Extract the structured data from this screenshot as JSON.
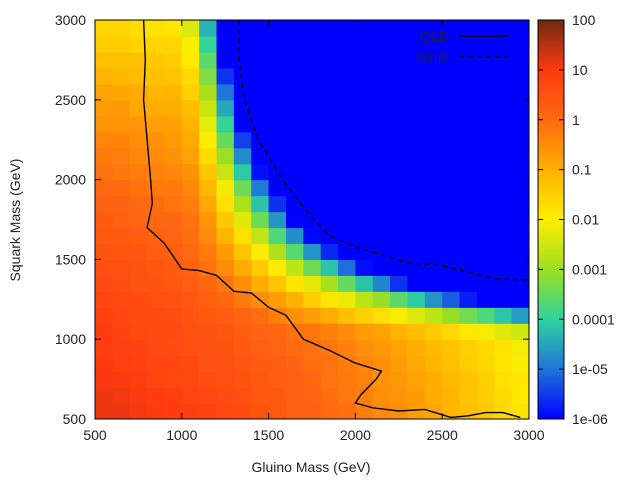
{
  "chart_data": {
    "type": "heatmap",
    "title": "",
    "xlabel": "Gluino Mass (GeV)",
    "ylabel": "Squark Mass (GeV)",
    "xlim": [
      500,
      3000
    ],
    "ylim": [
      500,
      3000
    ],
    "x_ticks": [
      500,
      1000,
      1500,
      2000,
      2500,
      3000
    ],
    "y_ticks": [
      500,
      1000,
      1500,
      2000,
      2500,
      3000
    ],
    "x_tick_labels": [
      "500",
      "1000",
      "1500",
      "2000",
      "2500",
      "3000"
    ],
    "y_tick_labels": [
      "500",
      "1000",
      "1500",
      "2000",
      "2500",
      "3000"
    ],
    "grid_step_gev": 100,
    "colorbar": {
      "scale": "log",
      "range": [
        1e-06,
        100
      ],
      "ticks": [
        100,
        10,
        1,
        0.1,
        0.01,
        0.001,
        0.0001,
        1e-05,
        1e-06
      ],
      "tick_labels": [
        "100",
        "10",
        "1",
        "0.1",
        "0.01",
        "0.001",
        "0.0001",
        "1e-05",
        "1e-06"
      ],
      "palette": [
        "#0000ff",
        "#1f74d9",
        "#2ed3a0",
        "#9fdf20",
        "#ffee00",
        "#ffb000",
        "#ff6a10",
        "#ff3a10",
        "#6e2a10"
      ]
    },
    "series": [
      {
        "name": "QLD",
        "style": "solid",
        "points": [
          [
            780,
            3000
          ],
          [
            790,
            2750
          ],
          [
            780,
            2500
          ],
          [
            800,
            2250
          ],
          [
            820,
            2000
          ],
          [
            830,
            1850
          ],
          [
            800,
            1700
          ],
          [
            900,
            1600
          ],
          [
            1000,
            1440
          ],
          [
            1100,
            1430
          ],
          [
            1200,
            1400
          ],
          [
            1300,
            1300
          ],
          [
            1400,
            1290
          ],
          [
            1500,
            1200
          ],
          [
            1600,
            1150
          ],
          [
            1700,
            1000
          ],
          [
            1850,
            930
          ],
          [
            2000,
            850
          ],
          [
            2150,
            800
          ],
          [
            2120,
            750
          ],
          [
            2030,
            650
          ],
          [
            2000,
            600
          ],
          [
            2100,
            570
          ],
          [
            2250,
            550
          ],
          [
            2400,
            560
          ],
          [
            2550,
            510
          ],
          [
            2650,
            520
          ],
          [
            2750,
            540
          ],
          [
            2850,
            540
          ],
          [
            2950,
            510
          ]
        ]
      },
      {
        "name": "Sim0",
        "style": "dashed",
        "points": [
          [
            1330,
            3000
          ],
          [
            1330,
            2750
          ],
          [
            1360,
            2500
          ],
          [
            1440,
            2250
          ],
          [
            1580,
            2000
          ],
          [
            1720,
            1800
          ],
          [
            1850,
            1650
          ],
          [
            2000,
            1580
          ],
          [
            2150,
            1530
          ],
          [
            2300,
            1480
          ],
          [
            2500,
            1460
          ],
          [
            2650,
            1420
          ],
          [
            2800,
            1380
          ],
          [
            3000,
            1370
          ]
        ]
      }
    ],
    "legend_position": "top-right"
  }
}
